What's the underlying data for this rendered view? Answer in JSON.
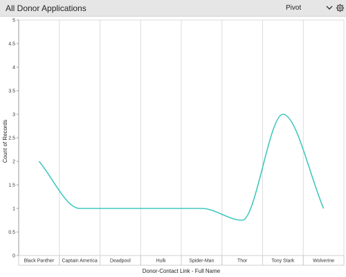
{
  "header": {
    "title": "All Donor Applications",
    "view_label": "Pivot",
    "chevron_icon": "chevron-down-icon",
    "settings_icon": "gear-icon",
    "background": "#e6e6e6"
  },
  "chart_data": {
    "type": "line",
    "categories": [
      "Black Panther",
      "Captain America",
      "Deadpool",
      "Hulk",
      "Spider-Man",
      "Thor",
      "Tony Stark",
      "Wolverine"
    ],
    "values": [
      2,
      1,
      1,
      1,
      1,
      0.75,
      3,
      1
    ],
    "xlabel": "Donor-Contact Link - Full Name",
    "ylabel": "Count of Records",
    "ylim": [
      0,
      5
    ],
    "yticks": [
      "0",
      "0.5",
      "1",
      "1.5",
      "2",
      "2.5",
      "3",
      "3.5",
      "4",
      "4.5",
      "5"
    ],
    "line_color": "#40c8bd",
    "grid": true,
    "smooth": true
  }
}
